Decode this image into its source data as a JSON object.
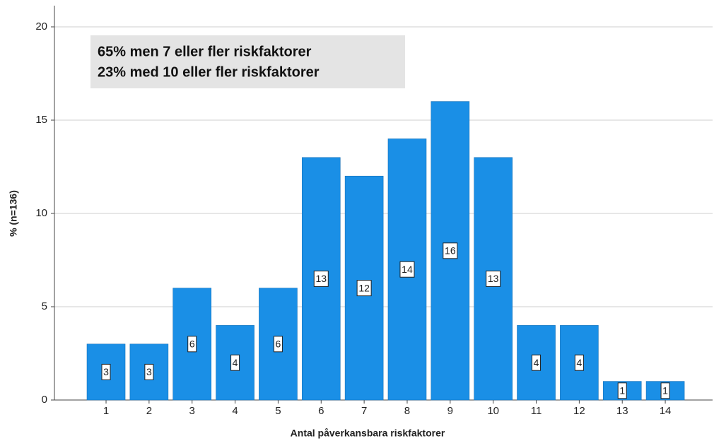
{
  "chart_data": {
    "type": "bar",
    "annotations": [
      "65% men 7 eller fler riskfaktorer",
      "23% med 10 eller fler riskfaktorer"
    ],
    "x_label": "Antal påverkansbara riskfaktorer",
    "y_label": "% (n=136)",
    "categories": [
      "1",
      "2",
      "3",
      "4",
      "5",
      "6",
      "7",
      "8",
      "9",
      "10",
      "11",
      "12",
      "13",
      "14"
    ],
    "values": [
      3,
      3,
      6,
      4,
      6,
      13,
      12,
      14,
      16,
      13,
      4,
      4,
      1,
      1
    ],
    "color": "#1a8fe6",
    "ylim": [
      0,
      20
    ],
    "yticks": [
      0,
      5,
      10,
      15,
      20
    ],
    "grid": true
  }
}
